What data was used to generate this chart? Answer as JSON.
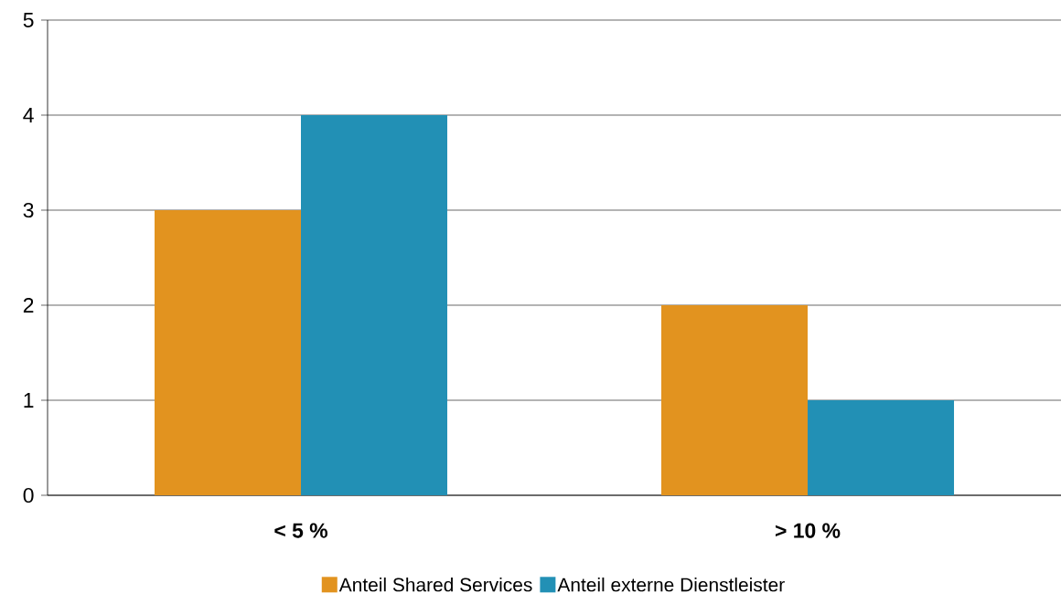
{
  "chart_data": {
    "type": "bar",
    "categories": [
      "< 5 %",
      "> 10 %"
    ],
    "series": [
      {
        "name": "Anteil Shared Services",
        "color": "#e2931f",
        "values": [
          3,
          2
        ]
      },
      {
        "name": "Anteil externe Dienstleister",
        "color": "#2290b5",
        "values": [
          4,
          1
        ]
      }
    ],
    "ylim": [
      0,
      5
    ],
    "yticks": [
      0,
      1,
      2,
      3,
      4,
      5
    ],
    "grid": "y",
    "legend": "bottom"
  }
}
